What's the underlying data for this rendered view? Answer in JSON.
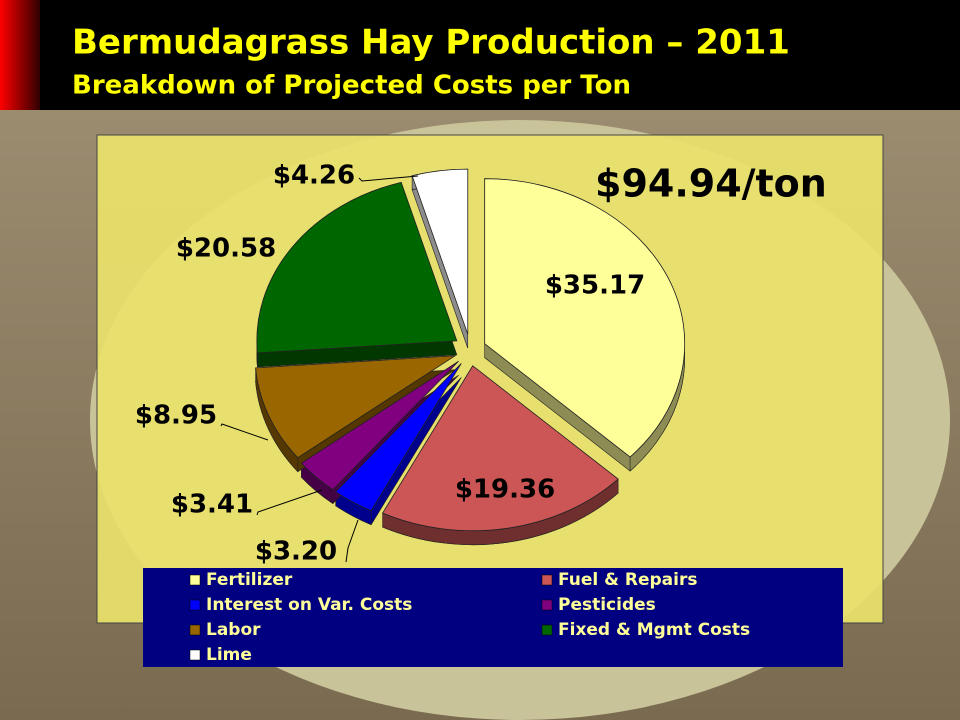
{
  "chart_data": {
    "type": "pie",
    "title": "Bermudagrass Hay Production – 2011",
    "subtitle": "Breakdown of Projected Costs per Ton",
    "annotation": "$94.94/ton",
    "categories": [
      "Fertilizer",
      "Fuel & Repairs",
      "Interest on Var. Costs",
      "Pesticides",
      "Labor",
      "Fixed & Mgmt Costs",
      "Lime"
    ],
    "values": [
      35.17,
      19.36,
      3.2,
      3.41,
      8.95,
      20.58,
      4.26
    ],
    "value_labels": [
      "$35.17",
      "$19.36",
      "$3.20",
      "$3.41",
      "$8.95",
      "$20.58",
      "$4.26"
    ],
    "colors": [
      "#ffff99",
      "#cc5555",
      "#0000ff",
      "#800080",
      "#996600",
      "#006600",
      "#ffffff"
    ]
  }
}
